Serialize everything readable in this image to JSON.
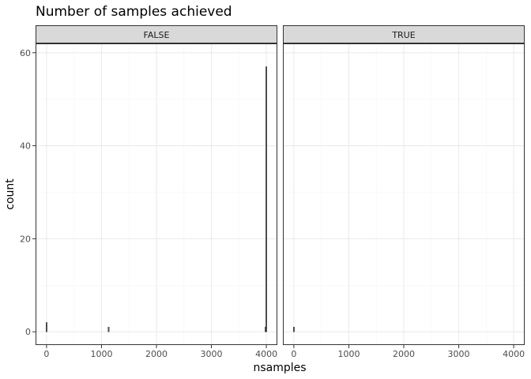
{
  "chart_data": {
    "type": "bar",
    "title": "Number of samples achieved",
    "xlabel": "nsamples",
    "ylabel": "count",
    "xlim": [
      -200,
      4200
    ],
    "ylim": [
      -2.85,
      62
    ],
    "x_ticks": [
      0,
      1000,
      2000,
      3000,
      4000
    ],
    "x_tick_labels": [
      "0",
      "1000",
      "2000",
      "3000",
      "4000"
    ],
    "y_ticks": [
      0,
      20,
      40,
      60
    ],
    "y_tick_labels": [
      "0",
      "20",
      "40",
      "60"
    ],
    "grid": true,
    "colors": {
      "bar_fill": "#595959",
      "bar_outline": "#000000",
      "strip_fill": "#d9d9d9",
      "strip_border": "#333333",
      "panel_border": "#333333",
      "grid_major": "#ebebeb",
      "grid_minor": "#f5f5f5",
      "tick_label": "#4d4d4d"
    },
    "facets": [
      {
        "label": "FALSE",
        "bars": [
          {
            "x": 0,
            "count": 2
          },
          {
            "x": 1130,
            "count": 1
          },
          {
            "x": 3985,
            "count": 1
          },
          {
            "x": 4000,
            "count": 57
          }
        ]
      },
      {
        "label": "TRUE",
        "bars": [
          {
            "x": 0,
            "count": 1
          }
        ]
      }
    ]
  }
}
